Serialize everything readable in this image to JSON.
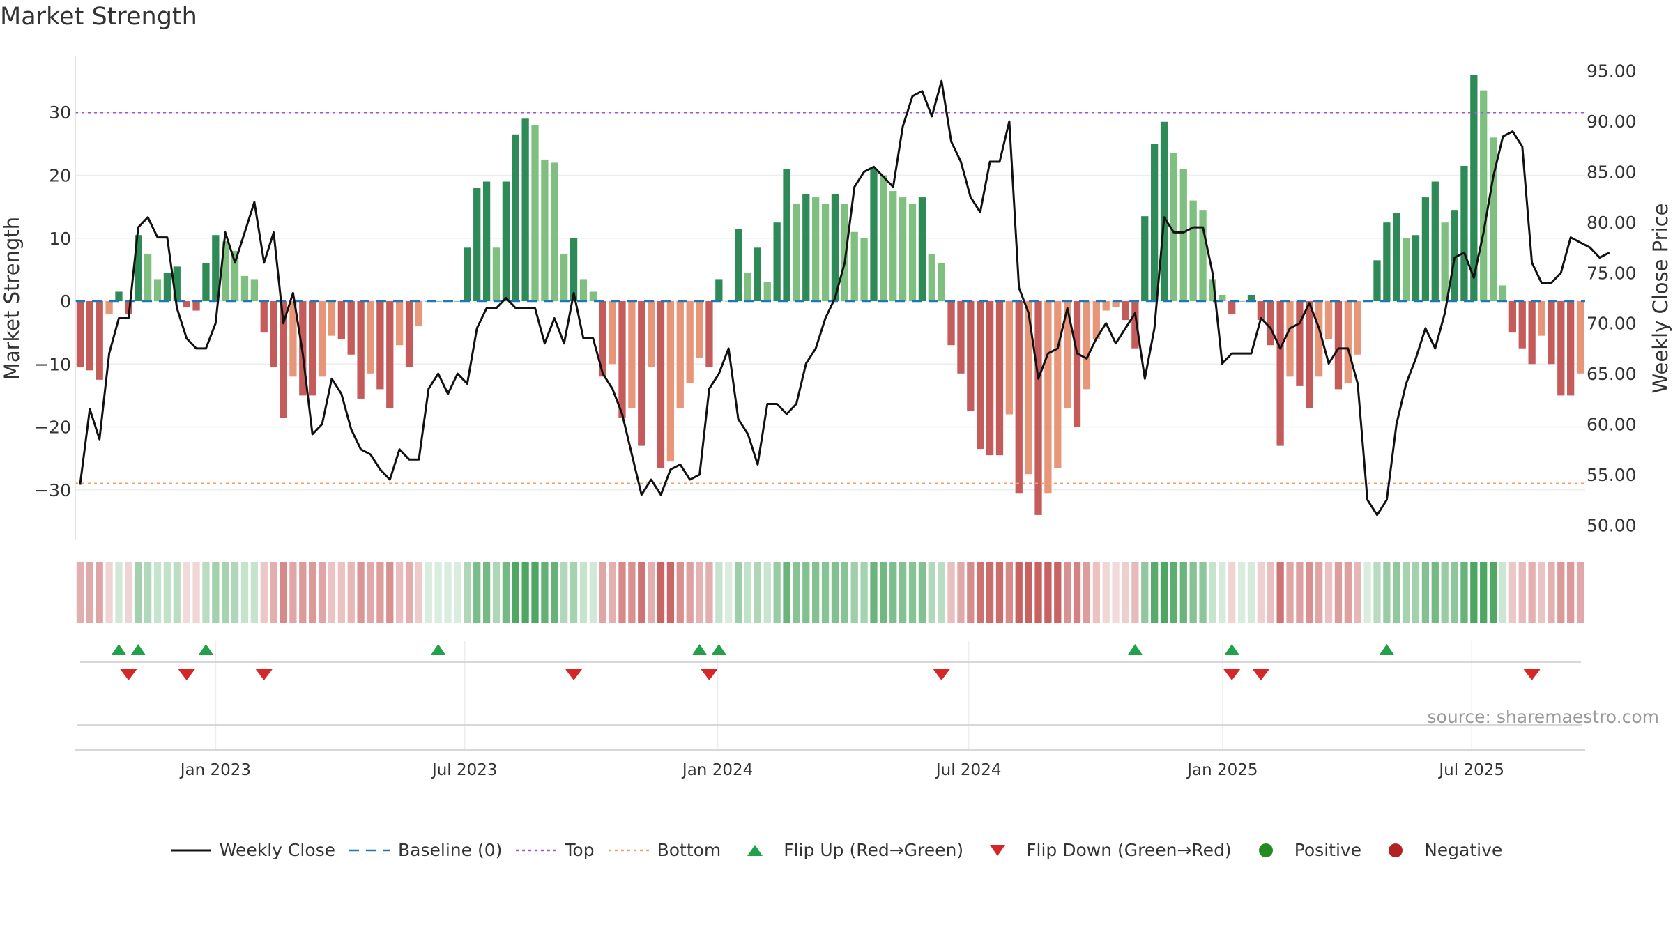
{
  "title": "Market Strength",
  "source": "source: sharemaestro.com",
  "colors": {
    "strong_green": "#2e8b57",
    "light_green": "#7fbf7f",
    "strong_red": "#c45c5c",
    "light_red": "#e8967a",
    "line": "#111111",
    "top": "#9b59d0",
    "bottom": "#f0a060",
    "baseline": "#1f77b4",
    "flip_up": "#22a04a",
    "flip_down": "#d62728",
    "positive": "#228b22",
    "negative": "#b22222"
  },
  "legend": [
    {
      "key": "line",
      "label": "Weekly Close"
    },
    {
      "key": "baseline",
      "label": "Baseline (0)"
    },
    {
      "key": "top",
      "label": "Top"
    },
    {
      "key": "bottom",
      "label": "Bottom"
    },
    {
      "key": "flip_up",
      "label": "Flip Up (Red→Green)"
    },
    {
      "key": "flip_down",
      "label": "Flip Down (Green→Red)"
    },
    {
      "key": "positive",
      "label": "Positive"
    },
    {
      "key": "negative",
      "label": "Negative"
    }
  ],
  "chart_data": {
    "type": "bar",
    "title": "Market Strength",
    "ylabel": "Market Strength",
    "y2label": "Weekly Close Price",
    "ylim": [
      -38,
      39
    ],
    "yticks": [
      30,
      20,
      10,
      0,
      -10,
      -20,
      -30
    ],
    "ytick_labels": [
      "30",
      "20",
      "10",
      "0",
      "−10",
      "−20",
      "−30"
    ],
    "y2lim": [
      48.5,
      96.5
    ],
    "y2ticks": [
      95,
      90,
      85,
      80,
      75,
      70,
      65,
      60,
      55,
      50
    ],
    "y2tick_labels": [
      "95.00",
      "90.00",
      "85.00",
      "80.00",
      "75.00",
      "70.00",
      "65.00",
      "60.00",
      "55.00",
      "50.00"
    ],
    "xlim": [
      0,
      157
    ],
    "xticks": [
      14.6,
      40.5,
      66.8,
      92.9,
      119.3,
      145.2
    ],
    "xtick_labels": [
      "Jan 2023",
      "Jul 2023",
      "Jan 2024",
      "Jul 2024",
      "Jan 2025",
      "Jul 2025"
    ],
    "top_level": 30,
    "bottom_level": -29,
    "baseline": 0,
    "strength": [
      -10.5,
      -11,
      -12.5,
      -2,
      1.5,
      -2,
      10.5,
      7.5,
      3.5,
      4.5,
      5.5,
      -1,
      -1.5,
      6,
      10.5,
      9.5,
      8,
      4,
      3.5,
      -5,
      -10.5,
      -18.5,
      -12,
      -15,
      -15,
      -12,
      -5.5,
      -6,
      -8.5,
      -15.5,
      -11.5,
      -14,
      -17,
      -7,
      -10.5,
      -4,
      0,
      0,
      0,
      0,
      8.5,
      18,
      19,
      8.5,
      19,
      26.5,
      29,
      28,
      22.5,
      22,
      7.5,
      10,
      3.5,
      1.5,
      -12,
      -10,
      -18.5,
      -17,
      -23,
      -10.5,
      -26.5,
      -25.5,
      -17,
      -13,
      -9,
      -10.5,
      3.5,
      0,
      11.5,
      4.5,
      8.5,
      3,
      12.5,
      21,
      15.5,
      17,
      16.5,
      15.5,
      17,
      15.5,
      11,
      10,
      21,
      20,
      17.5,
      16.5,
      15.5,
      16.5,
      7.5,
      6,
      -7,
      -11.5,
      -17.5,
      -23.5,
      -24.5,
      -24.5,
      -18,
      -30.5,
      -27.5,
      -34,
      -30.5,
      -26.5,
      -17,
      -20,
      -14,
      -6,
      -1.5,
      -1,
      -3,
      -7.5,
      13.5,
      25,
      28.5,
      23.5,
      21,
      16,
      14.5,
      3.5,
      1,
      -2,
      0,
      1,
      -3,
      -7,
      -23,
      -12,
      -13.5,
      -17,
      -12,
      -6,
      -14,
      -13,
      -8.5,
      0,
      6.5,
      12.5,
      14,
      10,
      10.5,
      16.5,
      19,
      12.5,
      14.5,
      21.5,
      36,
      33.5,
      26,
      2.5,
      -5,
      -7.5,
      -10,
      -5.5,
      -10,
      -15,
      -15,
      -11.5
    ],
    "weekly_close": [
      54,
      61.5,
      58.5,
      67,
      70.5,
      70.5,
      79.5,
      80.5,
      78.5,
      78.5,
      71.5,
      68.5,
      67.5,
      67.5,
      70,
      79,
      76,
      79,
      82,
      76,
      79,
      70,
      73,
      67,
      59,
      60,
      64.5,
      63,
      59.5,
      57.5,
      57,
      55.5,
      54.5,
      57.5,
      56.5,
      56.5,
      63.5,
      65,
      63,
      65,
      64,
      69.5,
      71.5,
      71.5,
      72.5,
      71.5,
      71.5,
      71.5,
      68,
      70.5,
      68,
      73,
      68.5,
      68.5,
      65,
      63.5,
      61,
      57,
      53,
      54.5,
      53,
      55.5,
      56,
      54.5,
      55,
      63.5,
      65,
      67.5,
      60.5,
      59,
      56,
      62,
      62,
      61,
      62,
      66,
      67.5,
      70.5,
      72.5,
      76,
      83.5,
      85,
      85.5,
      84.5,
      83.5,
      89.5,
      92.5,
      93,
      90.5,
      94,
      88,
      86,
      82.5,
      81,
      86,
      86,
      90,
      73.5,
      71,
      64.5,
      67,
      67.5,
      71.5,
      67,
      66.5,
      68.5,
      70,
      68,
      69.5,
      71,
      64.5,
      69.5,
      80.5,
      79,
      79,
      79.5,
      79.5,
      75,
      66,
      67,
      67,
      67,
      70.5,
      69.5,
      67.5,
      69.5,
      70,
      72,
      69.5,
      66,
      67.5,
      67.5,
      64,
      52.5,
      51,
      52.5,
      60,
      64,
      66.5,
      69.5,
      67.5,
      71,
      76.5,
      77,
      74.5,
      79,
      84.5,
      88.5,
      89,
      87.5,
      76,
      74,
      74,
      75,
      78.5,
      78,
      77.5,
      76.5,
      77
    ],
    "flip_up_index": [
      4,
      6,
      13,
      37,
      64,
      66,
      109,
      119,
      135
    ],
    "flip_down_index": [
      5,
      11,
      19,
      51,
      65,
      89,
      119,
      122,
      150
    ]
  }
}
